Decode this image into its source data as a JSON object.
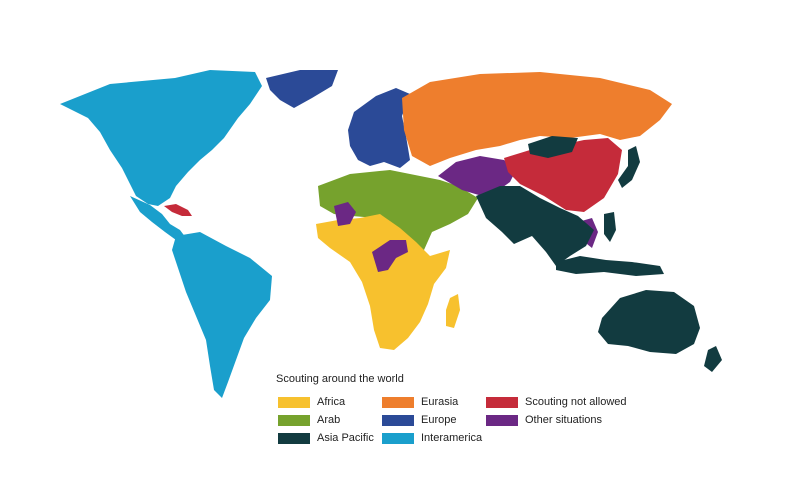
{
  "colors": {
    "africa": "#f7c12e",
    "arab": "#76a22d",
    "asia_pacific": "#123b40",
    "eurasia": "#ee7e2d",
    "europe": "#2b4a97",
    "interamerica": "#1a9fcc",
    "not_allowed": "#c52b3a",
    "other": "#6b2884",
    "water": "#ffffff"
  },
  "legend": {
    "title": "Scouting around the world",
    "items": [
      {
        "label": "Africa",
        "color": "#f7c12e"
      },
      {
        "label": "Arab",
        "color": "#76a22d"
      },
      {
        "label": "Asia Pacific",
        "color": "#123b40"
      },
      {
        "label": "Eurasia",
        "color": "#ee7e2d"
      },
      {
        "label": "Europe",
        "color": "#2b4a97"
      },
      {
        "label": "Interamerica",
        "color": "#1a9fcc"
      },
      {
        "label": "Scouting not allowed",
        "color": "#c52b3a"
      },
      {
        "label": "Other situations",
        "color": "#6b2884"
      }
    ]
  }
}
